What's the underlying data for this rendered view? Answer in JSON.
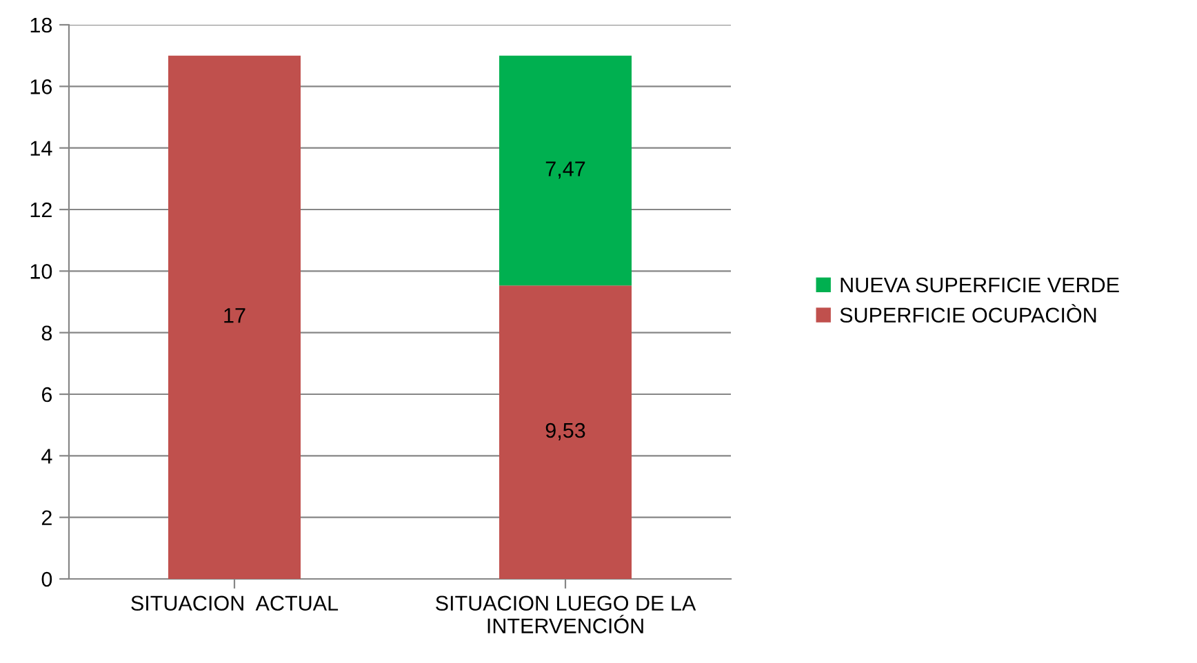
{
  "chart_data": {
    "type": "bar",
    "stacked": true,
    "categories": [
      "SITUACION  ACTUAL",
      "SITUACION LUEGO DE LA\nINTERVENCIÓN"
    ],
    "series": [
      {
        "name": "SUPERFICIE OCUPACIÒN",
        "color": "#c0504d",
        "values": [
          17,
          9.53
        ],
        "value_labels": [
          "17",
          "9,53"
        ]
      },
      {
        "name": "NUEVA SUPERFICIE VERDE",
        "color": "#00b050",
        "values": [
          null,
          7.47
        ],
        "value_labels": [
          null,
          "7,47"
        ]
      }
    ],
    "ylim": [
      0,
      18
    ],
    "yticks": [
      0,
      2,
      4,
      6,
      8,
      10,
      12,
      14,
      16,
      18
    ],
    "grid": "y",
    "legend": "right"
  }
}
